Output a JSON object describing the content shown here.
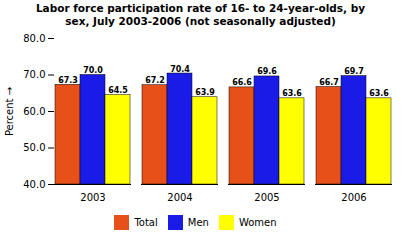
{
  "chart_data": {
    "type": "bar",
    "title": "Labor force participation rate of 16- to 24-year-olds, by\nsex, July 2003-2006 (not seasonally adjusted)",
    "ylabel": "Percent",
    "categories": [
      "2003",
      "2004",
      "2005",
      "2006"
    ],
    "series": [
      {
        "name": "Total",
        "color": "#E8501A",
        "values": [
          67.3,
          67.2,
          66.6,
          66.7
        ],
        "value_labels": [
          "67.3",
          "67.2",
          "66.6",
          "66.7"
        ]
      },
      {
        "name": "Men",
        "color": "#1B1BE8",
        "values": [
          70.0,
          70.4,
          69.6,
          69.7
        ],
        "value_labels": [
          "70.0",
          "70.4",
          "69.6",
          "69.7"
        ]
      },
      {
        "name": "Women",
        "color": "#FFFF00",
        "values": [
          64.5,
          63.9,
          63.6,
          63.6
        ],
        "value_labels": [
          "64.5",
          "63.9",
          "63.6",
          "63.6"
        ]
      }
    ],
    "ylim": [
      40.0,
      80.0
    ],
    "yticks": [
      {
        "value": 40,
        "label": "40.0"
      },
      {
        "value": 50,
        "label": "50.0"
      },
      {
        "value": 60,
        "label": "60.0"
      },
      {
        "value": 70,
        "label": "70.0"
      },
      {
        "value": 80,
        "label": "80.0"
      }
    ],
    "data_labels": true,
    "grid": false,
    "legend": "bottom"
  }
}
